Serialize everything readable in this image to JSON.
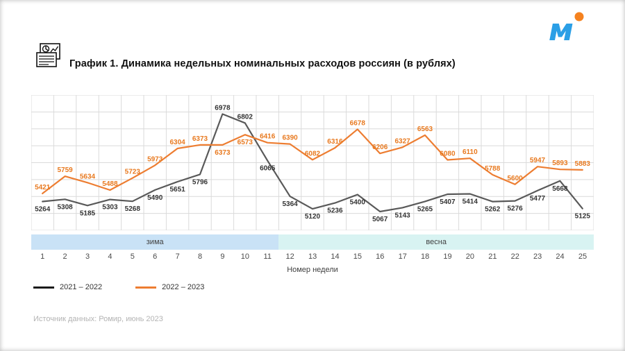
{
  "page": {
    "title": "График 1. Динамика недельных номинальных расходов россиян (в рублях)",
    "source": "Источник данных: Ромир, июнь 2023"
  },
  "icons": {
    "title_icon": "document-chart-icon",
    "logo": "brand-m-logo-with-orange-dot"
  },
  "colors": {
    "series_2021_2022": "#595959",
    "series_2022_2023": "#ED7D31",
    "label_gray": "#333333",
    "label_orange": "#e8791f",
    "grid": "#dadada",
    "winter_band": "#c9e2f6",
    "spring_band": "#d8f3f2"
  },
  "legend": [
    {
      "label": "2021 – 2022",
      "color": "#1a1a1a"
    },
    {
      "label": "2022 – 2023",
      "color": "#ED7D31"
    }
  ],
  "chart_data": {
    "type": "line",
    "title": "График 1. Динамика недельных номинальных расходов россиян (в рублях)",
    "xlabel": "Номер недели",
    "ylabel": "",
    "ylim": [
      4700,
      7350
    ],
    "grid": true,
    "legend_position": "bottom-left",
    "x": [
      1,
      2,
      3,
      4,
      5,
      6,
      7,
      8,
      9,
      10,
      11,
      12,
      13,
      14,
      15,
      16,
      17,
      18,
      19,
      20,
      21,
      22,
      23,
      24,
      25
    ],
    "series": [
      {
        "name": "2021 – 2022",
        "color": "#595959",
        "values": [
          5264,
          5308,
          5185,
          5303,
          5268,
          5490,
          5651,
          5796,
          6978,
          6802,
          6065,
          5364,
          5120,
          5236,
          5400,
          5067,
          5143,
          5265,
          5407,
          5414,
          5262,
          5276,
          5477,
          5668,
          5125
        ]
      },
      {
        "name": "2022 – 2023",
        "color": "#ED7D31",
        "values": [
          5421,
          5759,
          5634,
          5488,
          5723,
          5973,
          6304,
          6373,
          6373,
          6573,
          6416,
          6390,
          6082,
          6316,
          6678,
          6206,
          6327,
          6563,
          6080,
          6110,
          5788,
          5600,
          5947,
          5893,
          5883
        ]
      }
    ],
    "seasons": [
      {
        "label": "зима",
        "from": 1,
        "to": 11,
        "color": "#c9e2f6"
      },
      {
        "label": "весна",
        "from": 12,
        "to": 25,
        "color": "#d8f3f2"
      }
    ]
  }
}
